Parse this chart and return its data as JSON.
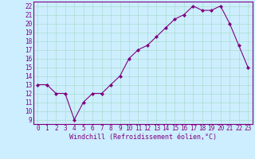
{
  "x": [
    0,
    1,
    2,
    3,
    4,
    5,
    6,
    7,
    8,
    9,
    10,
    11,
    12,
    13,
    14,
    15,
    16,
    17,
    18,
    19,
    20,
    21,
    22,
    23
  ],
  "y": [
    13,
    13,
    12,
    12,
    9,
    11,
    12,
    12,
    13,
    14,
    16,
    17,
    17.5,
    18.5,
    19.5,
    20.5,
    21,
    22,
    21.5,
    21.5,
    22,
    20,
    17.5,
    15
  ],
  "line_color": "#800080",
  "marker": "D",
  "marker_size": 2.0,
  "line_width": 0.8,
  "bg_color": "#cceeff",
  "grid_color": "#aaddcc",
  "xlabel": "Windchill (Refroidissement éolien,°C)",
  "xlabel_color": "#800080",
  "tick_color": "#800080",
  "spine_color": "#800080",
  "xlim": [
    -0.5,
    23.5
  ],
  "ylim": [
    8.5,
    22.5
  ],
  "yticks": [
    9,
    10,
    11,
    12,
    13,
    14,
    15,
    16,
    17,
    18,
    19,
    20,
    21,
    22
  ],
  "xticks": [
    0,
    1,
    2,
    3,
    4,
    5,
    6,
    7,
    8,
    9,
    10,
    11,
    12,
    13,
    14,
    15,
    16,
    17,
    18,
    19,
    20,
    21,
    22,
    23
  ],
  "tick_fontsize": 5.5,
  "xlabel_fontsize": 6.0
}
